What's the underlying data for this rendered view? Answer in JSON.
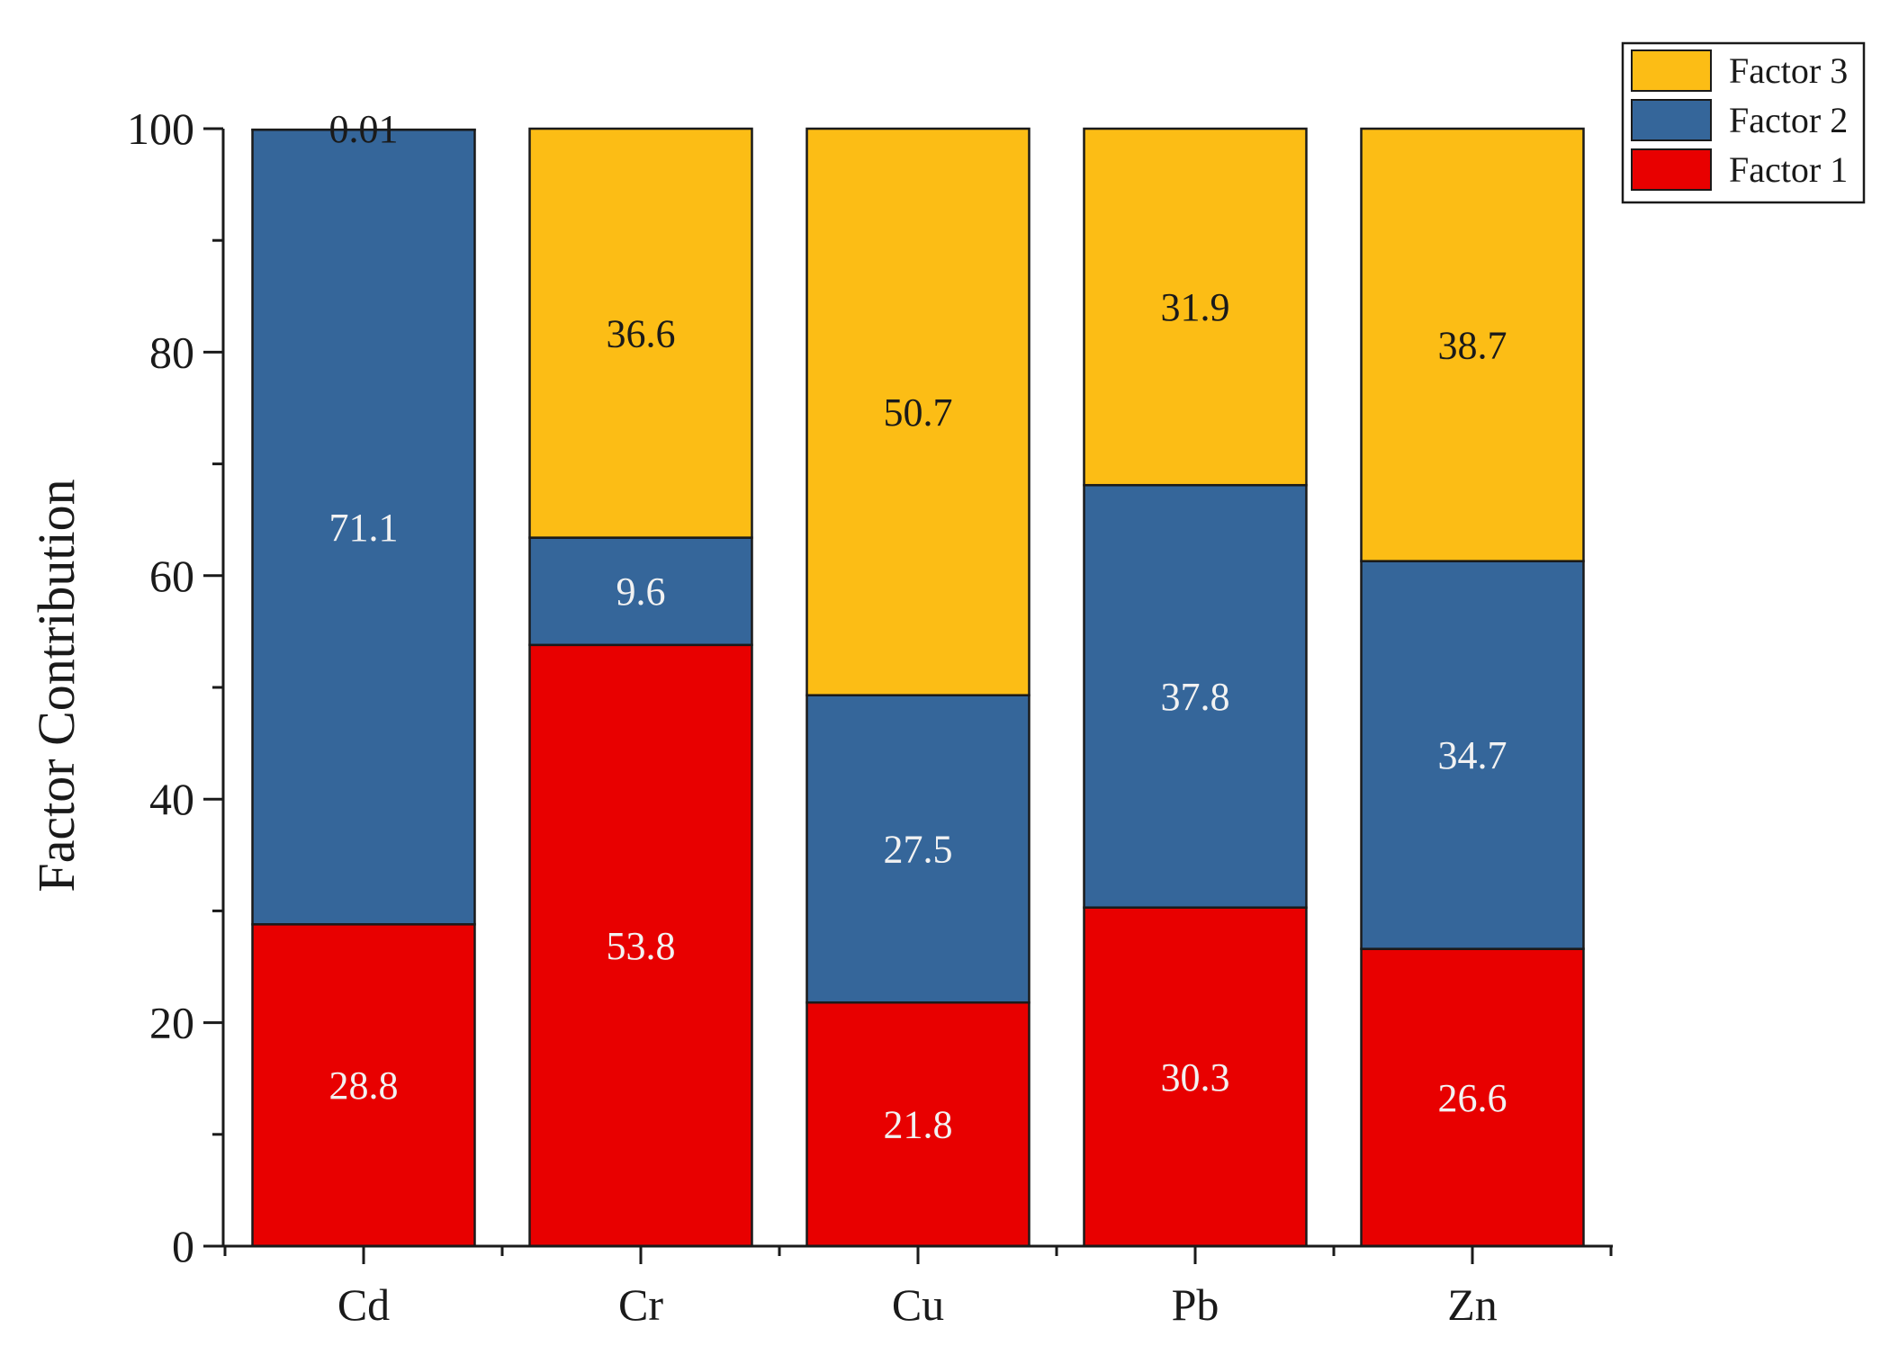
{
  "chart_data": {
    "type": "bar",
    "stacked": true,
    "title": "",
    "xlabel": "",
    "ylabel": "Factor Contribution",
    "ylim": [
      0,
      100
    ],
    "yticks": [
      0,
      20,
      40,
      60,
      80,
      100
    ],
    "categories": [
      "Cd",
      "Cr",
      "Cu",
      "Pb",
      "Zn"
    ],
    "series": [
      {
        "name": "Factor 1",
        "color": "#e80000",
        "label_color": "#f2f2f2",
        "values": [
          28.8,
          53.8,
          21.8,
          30.3,
          26.6
        ],
        "labels": [
          "28.8",
          "53.8",
          "21.8",
          "30.3",
          "26.6"
        ]
      },
      {
        "name": "Factor 2",
        "color": "#35669a",
        "label_color": "#f2f2f2",
        "values": [
          71.1,
          9.6,
          27.5,
          37.8,
          34.7
        ],
        "labels": [
          "71.1",
          "9.6",
          "27.5",
          "37.8",
          "34.7"
        ]
      },
      {
        "name": "Factor 3",
        "color": "#fcbd15",
        "label_color": "#1a1a1a",
        "values": [
          0.01,
          36.6,
          50.7,
          31.9,
          38.7
        ],
        "labels": [
          "0.01",
          "36.6",
          "50.7",
          "31.9",
          "38.7"
        ]
      }
    ],
    "legend": {
      "position": "top-right",
      "order": [
        "Factor 3",
        "Factor 2",
        "Factor 1"
      ]
    }
  }
}
